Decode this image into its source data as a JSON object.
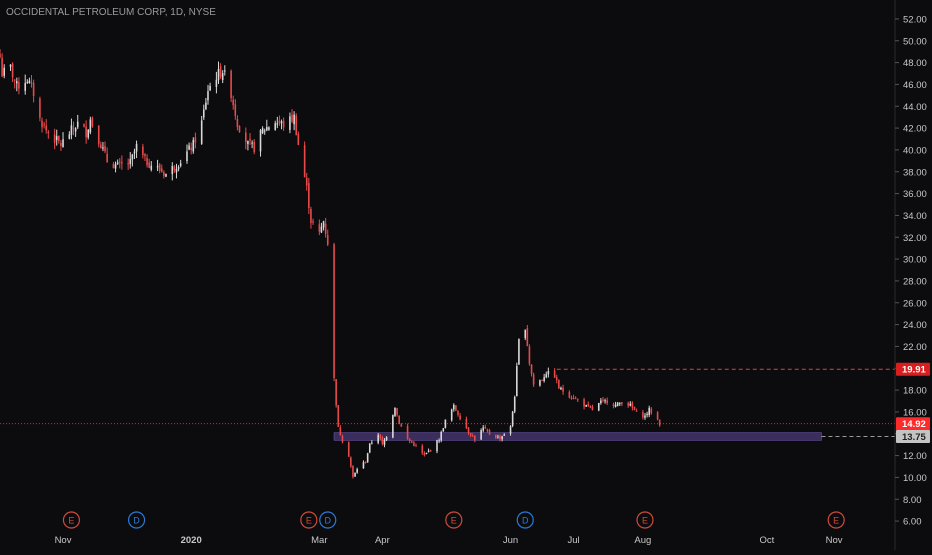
{
  "header": {
    "symbol_title": "OCCIDENTAL PETROLEUM CORP, 1D, NYSE"
  },
  "colors": {
    "background": "#0c0c0f",
    "up_candle": "#d9d9d9",
    "down_candle": "#e84a4a",
    "price_line": "#ff2a2a",
    "resistance_line": "#d84343",
    "support_zone": "#4b3a78",
    "support_line": "#9a9a9a",
    "earnings_marker": "#d04a3b",
    "dividend_marker": "#2a7ad8",
    "axis_text": "#c8c8c8"
  },
  "chart_data": {
    "type": "candlestick",
    "yaxis": {
      "ylim": [
        5,
        53
      ],
      "ticks": [
        "52.00",
        "50.00",
        "48.00",
        "46.00",
        "44.00",
        "42.00",
        "40.00",
        "38.00",
        "36.00",
        "34.00",
        "32.00",
        "30.00",
        "28.00",
        "26.00",
        "24.00",
        "22.00",
        "20.00",
        "18.00",
        "16.00",
        "14.00",
        "12.00",
        "10.00",
        "8.00",
        "6.00"
      ],
      "tick_values": [
        52,
        50,
        48,
        46,
        44,
        42,
        40,
        38,
        36,
        34,
        32,
        30,
        28,
        26,
        24,
        22,
        20,
        18,
        16,
        14,
        12,
        10,
        8,
        6
      ]
    },
    "xaxis": {
      "labels": [
        "Nov",
        "2020",
        "Mar",
        "Apr",
        "Jun",
        "Jul",
        "Aug",
        "Oct",
        "Nov"
      ],
      "label_dates": [
        "2019-11-01",
        "2020-01-01",
        "2020-03-02",
        "2020-04-01",
        "2020-06-01",
        "2020-07-01",
        "2020-08-03",
        "2020-10-01",
        "2020-11-02"
      ],
      "range": [
        "2019-10-02",
        "2020-12-01"
      ]
    },
    "price_labels": [
      {
        "text": "19.91",
        "value": 19.91,
        "style": "resistance"
      },
      {
        "text": "14.92",
        "value": 14.92,
        "style": "current"
      },
      {
        "text": "13.75",
        "value": 13.75,
        "style": "support"
      }
    ],
    "support_zone": {
      "low": 13.4,
      "high": 14.1,
      "from": "2020-03-09",
      "to": "2020-10-27"
    },
    "resistance_line": {
      "value": 19.91,
      "from": "2020-06-23",
      "to": "2020-12-01"
    },
    "current_price_line": {
      "value": 14.92
    },
    "events": [
      {
        "type": "E",
        "date": "2019-11-05"
      },
      {
        "type": "D",
        "date": "2019-12-06"
      },
      {
        "type": "E",
        "date": "2020-02-26"
      },
      {
        "type": "D",
        "date": "2020-03-06"
      },
      {
        "type": "E",
        "date": "2020-05-05"
      },
      {
        "type": "D",
        "date": "2020-06-08"
      },
      {
        "type": "E",
        "date": "2020-08-04"
      },
      {
        "type": "E",
        "date": "2020-11-03"
      }
    ],
    "anchors": [
      [
        "2019-10-02",
        48.5
      ],
      [
        "2019-10-03",
        47.0
      ],
      [
        "2019-10-07",
        47.5
      ],
      [
        "2019-10-10",
        45.8
      ],
      [
        "2019-10-15",
        46.5
      ],
      [
        "2019-10-18",
        45.2
      ],
      [
        "2019-10-21",
        42.8
      ],
      [
        "2019-10-24",
        41.8
      ],
      [
        "2019-10-28",
        41.0
      ],
      [
        "2019-10-31",
        40.5
      ],
      [
        "2019-11-05",
        41.8
      ],
      [
        "2019-11-08",
        42.4
      ],
      [
        "2019-11-12",
        41.6
      ],
      [
        "2019-11-14",
        42.8
      ],
      [
        "2019-11-19",
        40.5
      ],
      [
        "2019-11-22",
        39.0
      ],
      [
        "2019-11-27",
        38.5
      ],
      [
        "2019-12-03",
        38.8
      ],
      [
        "2019-12-06",
        40.3
      ],
      [
        "2019-12-10",
        39.0
      ],
      [
        "2019-12-16",
        38.3
      ],
      [
        "2019-12-20",
        37.8
      ],
      [
        "2019-12-27",
        39.0
      ],
      [
        "2020-01-02",
        40.5
      ],
      [
        "2020-01-06",
        42.5
      ],
      [
        "2020-01-09",
        45.5
      ],
      [
        "2020-01-13",
        46.8
      ],
      [
        "2020-01-16",
        47.3
      ],
      [
        "2020-01-20",
        45.2
      ],
      [
        "2020-01-23",
        42.5
      ],
      [
        "2020-01-28",
        40.5
      ],
      [
        "2020-01-31",
        40.2
      ],
      [
        "2020-02-04",
        41.8
      ],
      [
        "2020-02-10",
        42.6
      ],
      [
        "2020-02-14",
        42.3
      ],
      [
        "2020-02-19",
        43.0
      ],
      [
        "2020-02-21",
        40.5
      ],
      [
        "2020-02-25",
        36.5
      ],
      [
        "2020-02-27",
        33.5
      ],
      [
        "2020-03-02",
        32.3
      ],
      [
        "2020-03-04",
        33.5
      ],
      [
        "2020-03-06",
        31.5
      ],
      [
        "2020-03-09",
        19.0
      ],
      [
        "2020-03-11",
        14.5
      ],
      [
        "2020-03-13",
        13.4
      ],
      [
        "2020-03-16",
        12.0
      ],
      [
        "2020-03-18",
        10.0
      ],
      [
        "2020-03-20",
        10.8
      ],
      [
        "2020-03-24",
        11.5
      ],
      [
        "2020-03-26",
        13.0
      ],
      [
        "2020-03-30",
        14.0
      ],
      [
        "2020-04-01",
        13.0
      ],
      [
        "2020-04-03",
        13.8
      ],
      [
        "2020-04-07",
        16.5
      ],
      [
        "2020-04-09",
        15.0
      ],
      [
        "2020-04-13",
        13.5
      ],
      [
        "2020-04-16",
        13.0
      ],
      [
        "2020-04-21",
        12.0
      ],
      [
        "2020-04-24",
        12.6
      ],
      [
        "2020-04-28",
        13.5
      ],
      [
        "2020-05-01",
        15.2
      ],
      [
        "2020-05-05",
        16.5
      ],
      [
        "2020-05-08",
        15.5
      ],
      [
        "2020-05-12",
        14.2
      ],
      [
        "2020-05-15",
        13.5
      ],
      [
        "2020-05-19",
        14.5
      ],
      [
        "2020-05-22",
        14.0
      ],
      [
        "2020-05-27",
        13.6
      ],
      [
        "2020-06-01",
        14.6
      ],
      [
        "2020-06-03",
        17.5
      ],
      [
        "2020-06-05",
        22.5
      ],
      [
        "2020-06-08",
        23.8
      ],
      [
        "2020-06-10",
        20.5
      ],
      [
        "2020-06-12",
        18.5
      ],
      [
        "2020-06-16",
        19.0
      ],
      [
        "2020-06-18",
        19.6
      ],
      [
        "2020-06-22",
        19.3
      ],
      [
        "2020-06-24",
        18.2
      ],
      [
        "2020-06-29",
        17.5
      ],
      [
        "2020-07-02",
        17.2
      ],
      [
        "2020-07-07",
        16.5
      ],
      [
        "2020-07-10",
        16.2
      ],
      [
        "2020-07-14",
        16.9
      ],
      [
        "2020-07-17",
        17.0
      ],
      [
        "2020-07-21",
        16.6
      ],
      [
        "2020-07-24",
        16.9
      ],
      [
        "2020-07-28",
        16.6
      ],
      [
        "2020-07-31",
        15.9
      ],
      [
        "2020-08-04",
        15.6
      ],
      [
        "2020-08-06",
        16.2
      ],
      [
        "2020-08-10",
        15.3
      ],
      [
        "2020-08-11",
        14.92
      ]
    ]
  }
}
